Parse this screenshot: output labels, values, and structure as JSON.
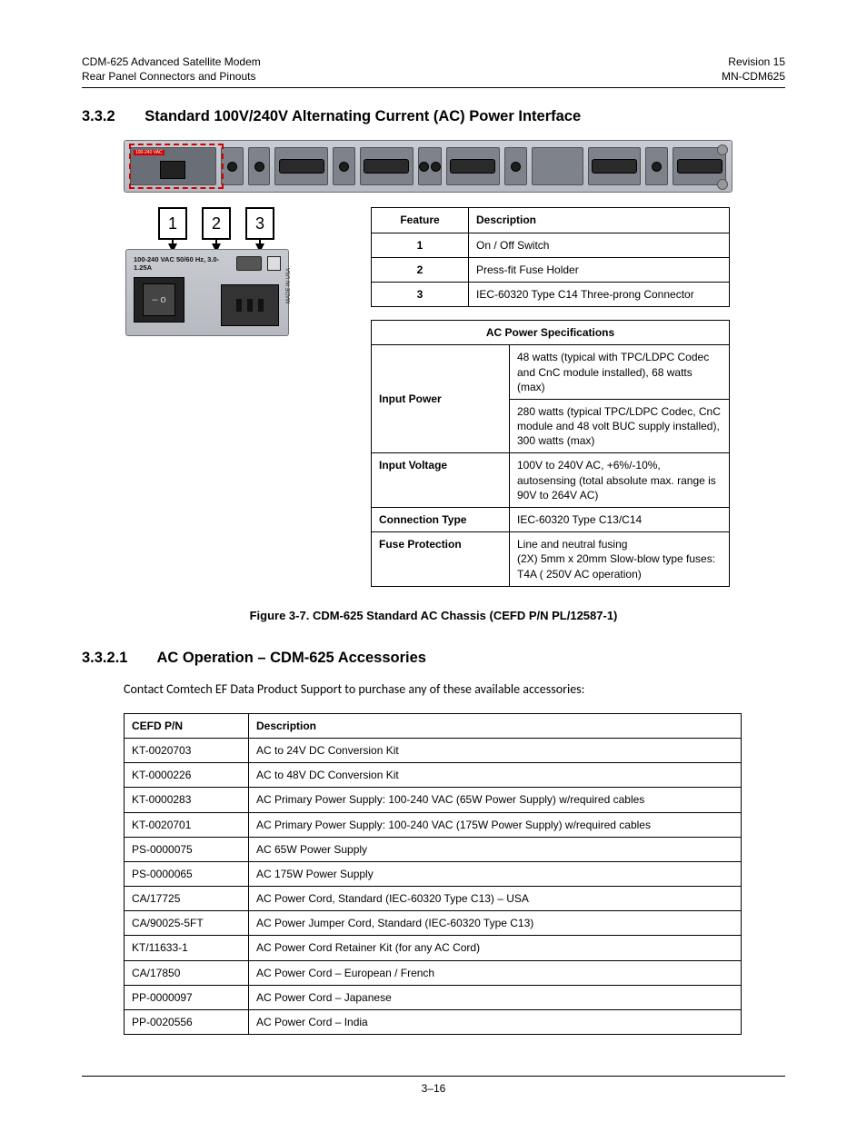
{
  "header": {
    "left1": "CDM-625 Advanced Satellite Modem",
    "left2": "Rear Panel Connectors and Pinouts",
    "right1": "Revision 15",
    "right2": "MN-CDM625"
  },
  "section1": {
    "num": "3.3.2",
    "title": "Standard 100V/240V Alternating Current (AC) Power Interface"
  },
  "callouts": [
    "1",
    "2",
    "3"
  ],
  "power_zoom_label": "100-240 VAC 50/60 Hz, 3.0-1.25A",
  "power_zoom_side": "MADE IN USA",
  "feature_table": {
    "head": [
      "Feature",
      "Description"
    ],
    "rows": [
      [
        "1",
        "On / Off Switch"
      ],
      [
        "2",
        "Press-fit Fuse Holder"
      ],
      [
        "3",
        "IEC-60320 Type C14 Three-prong Connector"
      ]
    ]
  },
  "spec_table": {
    "title": "AC Power Specifications",
    "rows": [
      {
        "k": "Input Power",
        "v": "48 watts (typical with TPC/LDPC Codec and CnC module installed), 68 watts (max)",
        "rowspan": 2
      },
      {
        "k": "",
        "v": "280 watts (typical TPC/LDPC Codec, CnC module and 48 volt BUC supply installed), 300 watts (max)"
      },
      {
        "k": "Input Voltage",
        "v": "100V to 240V AC, +6%/-10%, autosensing (total absolute max. range is 90V to 264V AC)"
      },
      {
        "k": "Connection Type",
        "v": "IEC-60320 Type C13/C14"
      },
      {
        "k": "Fuse Protection",
        "v": "Line and neutral fusing\n(2X) 5mm x 20mm Slow-blow type fuses:\nT4A ( 250V AC operation)"
      }
    ]
  },
  "caption": "Figure 3-7. CDM-625 Standard AC Chassis (CEFD P/N PL/12587-1)",
  "section2": {
    "num": "3.3.2.1",
    "title": "AC Operation – CDM-625 Accessories"
  },
  "body": "Contact Comtech EF Data Product Support to purchase any of  these available accessories:",
  "acc_table": {
    "head": [
      "CEFD P/N",
      "Description"
    ],
    "rows": [
      [
        "KT-0020703",
        "AC to 24V DC Conversion Kit"
      ],
      [
        "KT-0000226",
        "AC to 48V DC Conversion Kit"
      ],
      [
        "KT-0000283",
        "AC Primary Power Supply: 100-240 VAC (65W Power Supply) w/required cables"
      ],
      [
        "KT-0020701",
        "AC Primary Power Supply: 100-240 VAC (175W Power Supply) w/required cables"
      ],
      [
        "PS-0000075",
        "AC 65W Power Supply"
      ],
      [
        "PS-0000065",
        "AC 175W Power Supply"
      ],
      [
        "CA/17725",
        "AC Power Cord, Standard (IEC-60320 Type C13) – USA"
      ],
      [
        "CA/90025-5FT",
        "AC Power Jumper Cord, Standard (IEC-60320 Type C13)"
      ],
      [
        "KT/11633-1",
        "AC Power Cord Retainer Kit (for any AC Cord)"
      ],
      [
        "CA/17850",
        "AC Power Cord – European / French"
      ],
      [
        "PP-0000097",
        "AC Power Cord – Japanese"
      ],
      [
        "PP-0020556",
        "AC Power Cord – India"
      ]
    ]
  },
  "page_number": "3–16"
}
